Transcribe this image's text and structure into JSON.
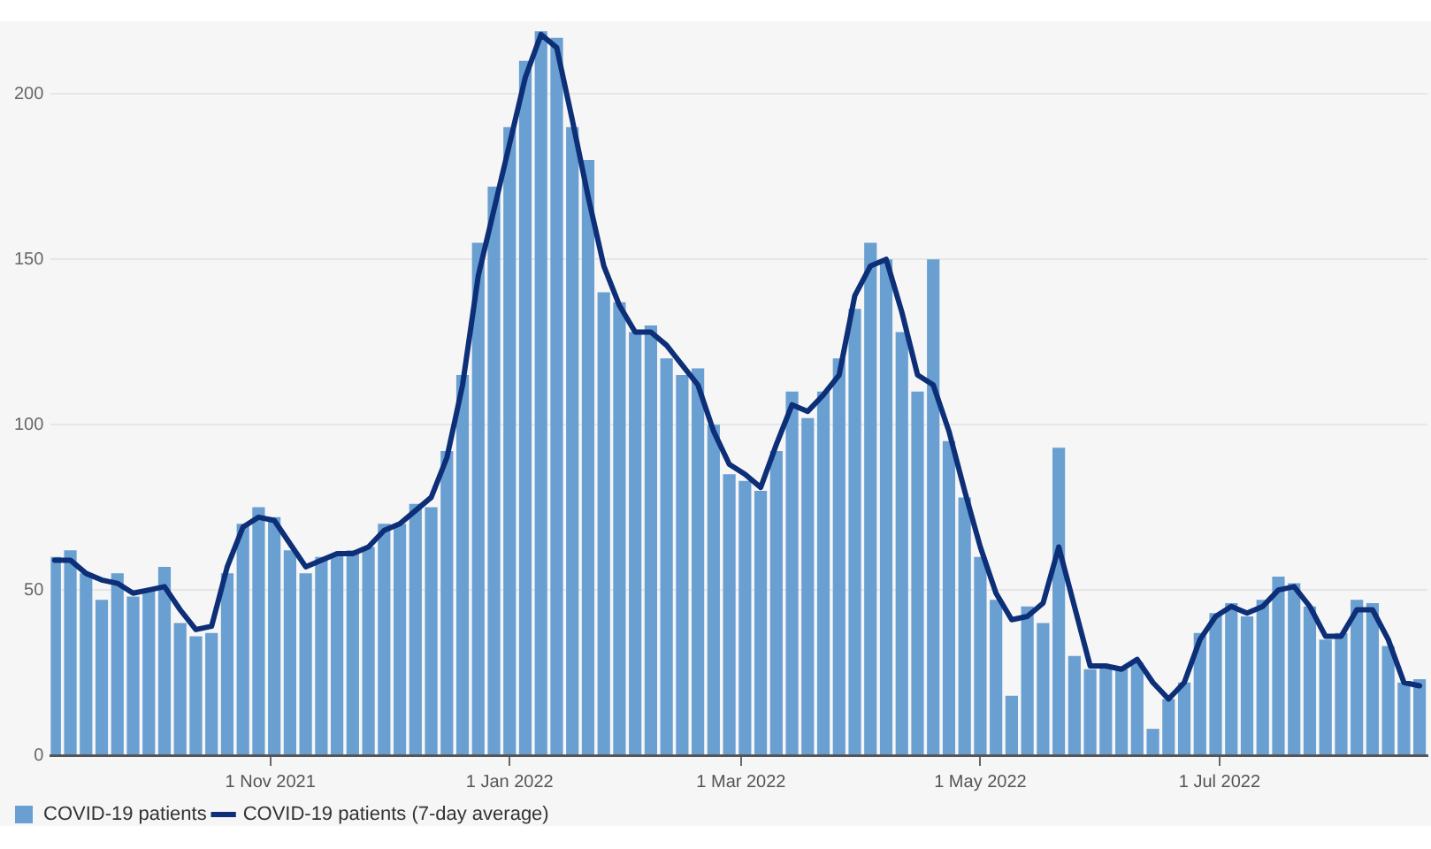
{
  "chart_data": {
    "type": "bar",
    "x": [
      "2021-09-07",
      "2021-09-11",
      "2021-09-15",
      "2021-09-19",
      "2021-09-23",
      "2021-09-27",
      "2021-10-01",
      "2021-10-05",
      "2021-10-09",
      "2021-10-13",
      "2021-10-17",
      "2021-10-21",
      "2021-10-25",
      "2021-10-29",
      "2021-11-02",
      "2021-11-06",
      "2021-11-10",
      "2021-11-14",
      "2021-11-18",
      "2021-11-22",
      "2021-11-26",
      "2021-11-30",
      "2021-12-04",
      "2021-12-08",
      "2021-12-12",
      "2021-12-16",
      "2021-12-20",
      "2021-12-24",
      "2021-12-28",
      "2022-01-01",
      "2022-01-05",
      "2022-01-09",
      "2022-01-13",
      "2022-01-17",
      "2022-01-21",
      "2022-01-25",
      "2022-01-29",
      "2022-02-02",
      "2022-02-06",
      "2022-02-10",
      "2022-02-14",
      "2022-02-18",
      "2022-02-22",
      "2022-02-26",
      "2022-03-02",
      "2022-03-06",
      "2022-03-10",
      "2022-03-14",
      "2022-03-18",
      "2022-03-22",
      "2022-03-26",
      "2022-03-30",
      "2022-04-03",
      "2022-04-07",
      "2022-04-11",
      "2022-04-15",
      "2022-04-19",
      "2022-04-23",
      "2022-04-27",
      "2022-05-01",
      "2022-05-05",
      "2022-05-09",
      "2022-05-13",
      "2022-05-17",
      "2022-05-21",
      "2022-05-25",
      "2022-05-29",
      "2022-06-02",
      "2022-06-06",
      "2022-06-10",
      "2022-06-14",
      "2022-06-18",
      "2022-06-22",
      "2022-06-26",
      "2022-06-30",
      "2022-07-04",
      "2022-07-08",
      "2022-07-12",
      "2022-07-16",
      "2022-07-20",
      "2022-07-24",
      "2022-07-28",
      "2022-08-01",
      "2022-08-05",
      "2022-08-09",
      "2022-08-13",
      "2022-08-17",
      "2022-08-21"
    ],
    "series": [
      {
        "name": "COVID-19 patients",
        "type": "bar",
        "color": "#6a9fd2",
        "values": [
          60,
          62,
          55,
          47,
          55,
          48,
          50,
          57,
          40,
          36,
          37,
          55,
          70,
          75,
          72,
          62,
          55,
          60,
          61,
          62,
          63,
          70,
          70,
          76,
          75,
          92,
          115,
          155,
          172,
          190,
          210,
          219,
          217,
          190,
          180,
          140,
          137,
          128,
          130,
          120,
          115,
          117,
          100,
          85,
          83,
          80,
          92,
          110,
          102,
          110,
          120,
          135,
          155,
          150,
          128,
          110,
          150,
          95,
          78,
          60,
          47,
          18,
          45,
          40,
          93,
          30,
          26,
          27,
          26,
          28,
          8,
          17,
          22,
          37,
          43,
          46,
          42,
          47,
          54,
          52,
          45,
          35,
          37,
          47,
          46,
          33,
          22,
          23
        ]
      },
      {
        "name": "COVID-19 patients (7-day average)",
        "type": "line",
        "color": "#0d2f78",
        "values": [
          59,
          59,
          55,
          53,
          52,
          49,
          50,
          51,
          44,
          38,
          39,
          57,
          69,
          72,
          71,
          64,
          57,
          59,
          61,
          61,
          63,
          68,
          70,
          74,
          78,
          90,
          112,
          145,
          165,
          185,
          205,
          218,
          214,
          192,
          169,
          148,
          136,
          128,
          128,
          124,
          118,
          112,
          98,
          88,
          85,
          81,
          94,
          106,
          104,
          109,
          115,
          139,
          148,
          150,
          134,
          115,
          112,
          98,
          80,
          63,
          49,
          41,
          42,
          46,
          63,
          45,
          27,
          27,
          26,
          29,
          22,
          17,
          22,
          35,
          42,
          45,
          43,
          45,
          50,
          51,
          45,
          36,
          36,
          44,
          44,
          35,
          22,
          21
        ]
      }
    ],
    "xlim": [
      "2021-09-06",
      "2022-08-23"
    ],
    "xticks": [
      {
        "value": "2021-11-01",
        "label": "1 Nov 2021"
      },
      {
        "value": "2022-01-01",
        "label": "1 Jan 2022"
      },
      {
        "value": "2022-03-01",
        "label": "1 Mar 2022"
      },
      {
        "value": "2022-05-01",
        "label": "1 May 2022"
      },
      {
        "value": "2022-07-01",
        "label": "1 Jul 2022"
      }
    ],
    "ylim": [
      0,
      222
    ],
    "yticks": [
      0,
      50,
      100,
      150,
      200
    ],
    "grid": "y",
    "legend": "bottom left",
    "marker": "none",
    "line_style": "solid"
  }
}
